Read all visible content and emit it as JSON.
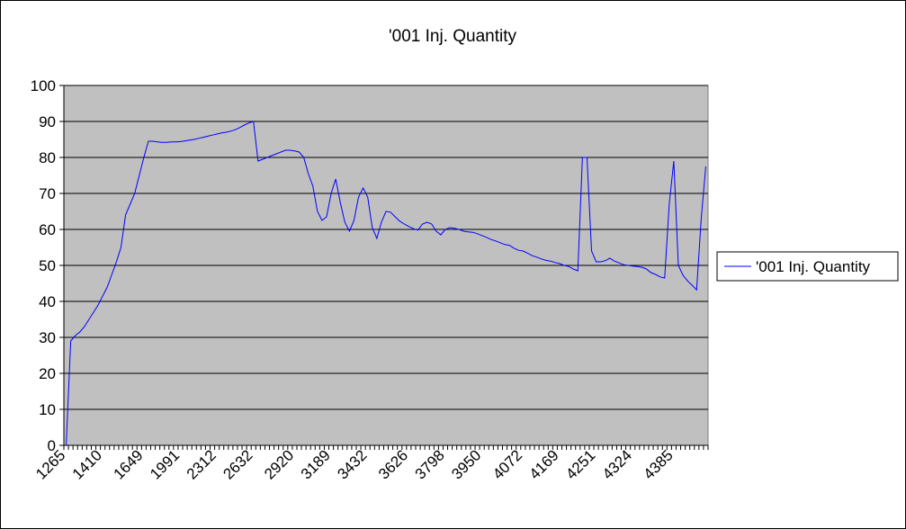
{
  "chart_data": {
    "type": "line",
    "title": "'001 Inj. Quantity",
    "xlabel": "",
    "ylabel": "",
    "ylim": [
      0,
      100
    ],
    "yticks": [
      0,
      10,
      20,
      30,
      40,
      50,
      60,
      70,
      80,
      90,
      100
    ],
    "x_tick_labels": [
      "1265",
      "1410",
      "1649",
      "1991",
      "2312",
      "2632",
      "2920",
      "3189",
      "3432",
      "3626",
      "3798",
      "3950",
      "4072",
      "4169",
      "4251",
      "4324",
      "4385"
    ],
    "grid": true,
    "plot_background": "#c0c0c0",
    "legend_position": "right",
    "series": [
      {
        "name": "'001 Inj. Quantity",
        "color": "#0000ff",
        "values": [
          0,
          29,
          30.5,
          31.5,
          33,
          35,
          37,
          39,
          41.5,
          44,
          47.5,
          51,
          55,
          64,
          67,
          70,
          75,
          80,
          84.5,
          84.5,
          84.3,
          84.2,
          84.2,
          84.3,
          84.3,
          84.4,
          84.6,
          84.8,
          85,
          85.3,
          85.6,
          85.9,
          86.2,
          86.5,
          86.8,
          87,
          87.3,
          87.7,
          88.3,
          89,
          89.6,
          90,
          79,
          79.5,
          80,
          80.5,
          81,
          81.5,
          82,
          82,
          81.8,
          81.5,
          80,
          75.5,
          72,
          65,
          62.5,
          63.5,
          70,
          74,
          67.5,
          62,
          59.5,
          62.5,
          69,
          71.5,
          69,
          60.5,
          57.5,
          62,
          65,
          64.8,
          63.5,
          62.3,
          61.5,
          60.8,
          60.2,
          59.8,
          61.5,
          62,
          61.5,
          59.5,
          58.5,
          60,
          60.5,
          60.3,
          60,
          59.5,
          59.3,
          59.2,
          58.8,
          58.3,
          57.8,
          57.2,
          56.8,
          56.3,
          55.8,
          55.6,
          54.8,
          54.2,
          54,
          53.4,
          52.7,
          52.3,
          51.8,
          51.4,
          51.2,
          50.8,
          50.5,
          50,
          49.7,
          49,
          48.5,
          80,
          80,
          54,
          51,
          51,
          51.3,
          52,
          51.2,
          50.7,
          50.2,
          50,
          49.8,
          49.7,
          49.5,
          49,
          48,
          47.5,
          46.8,
          46.5,
          67,
          79,
          50,
          47.3,
          45.7,
          44.5,
          43.2,
          63,
          77.5
        ]
      }
    ]
  }
}
